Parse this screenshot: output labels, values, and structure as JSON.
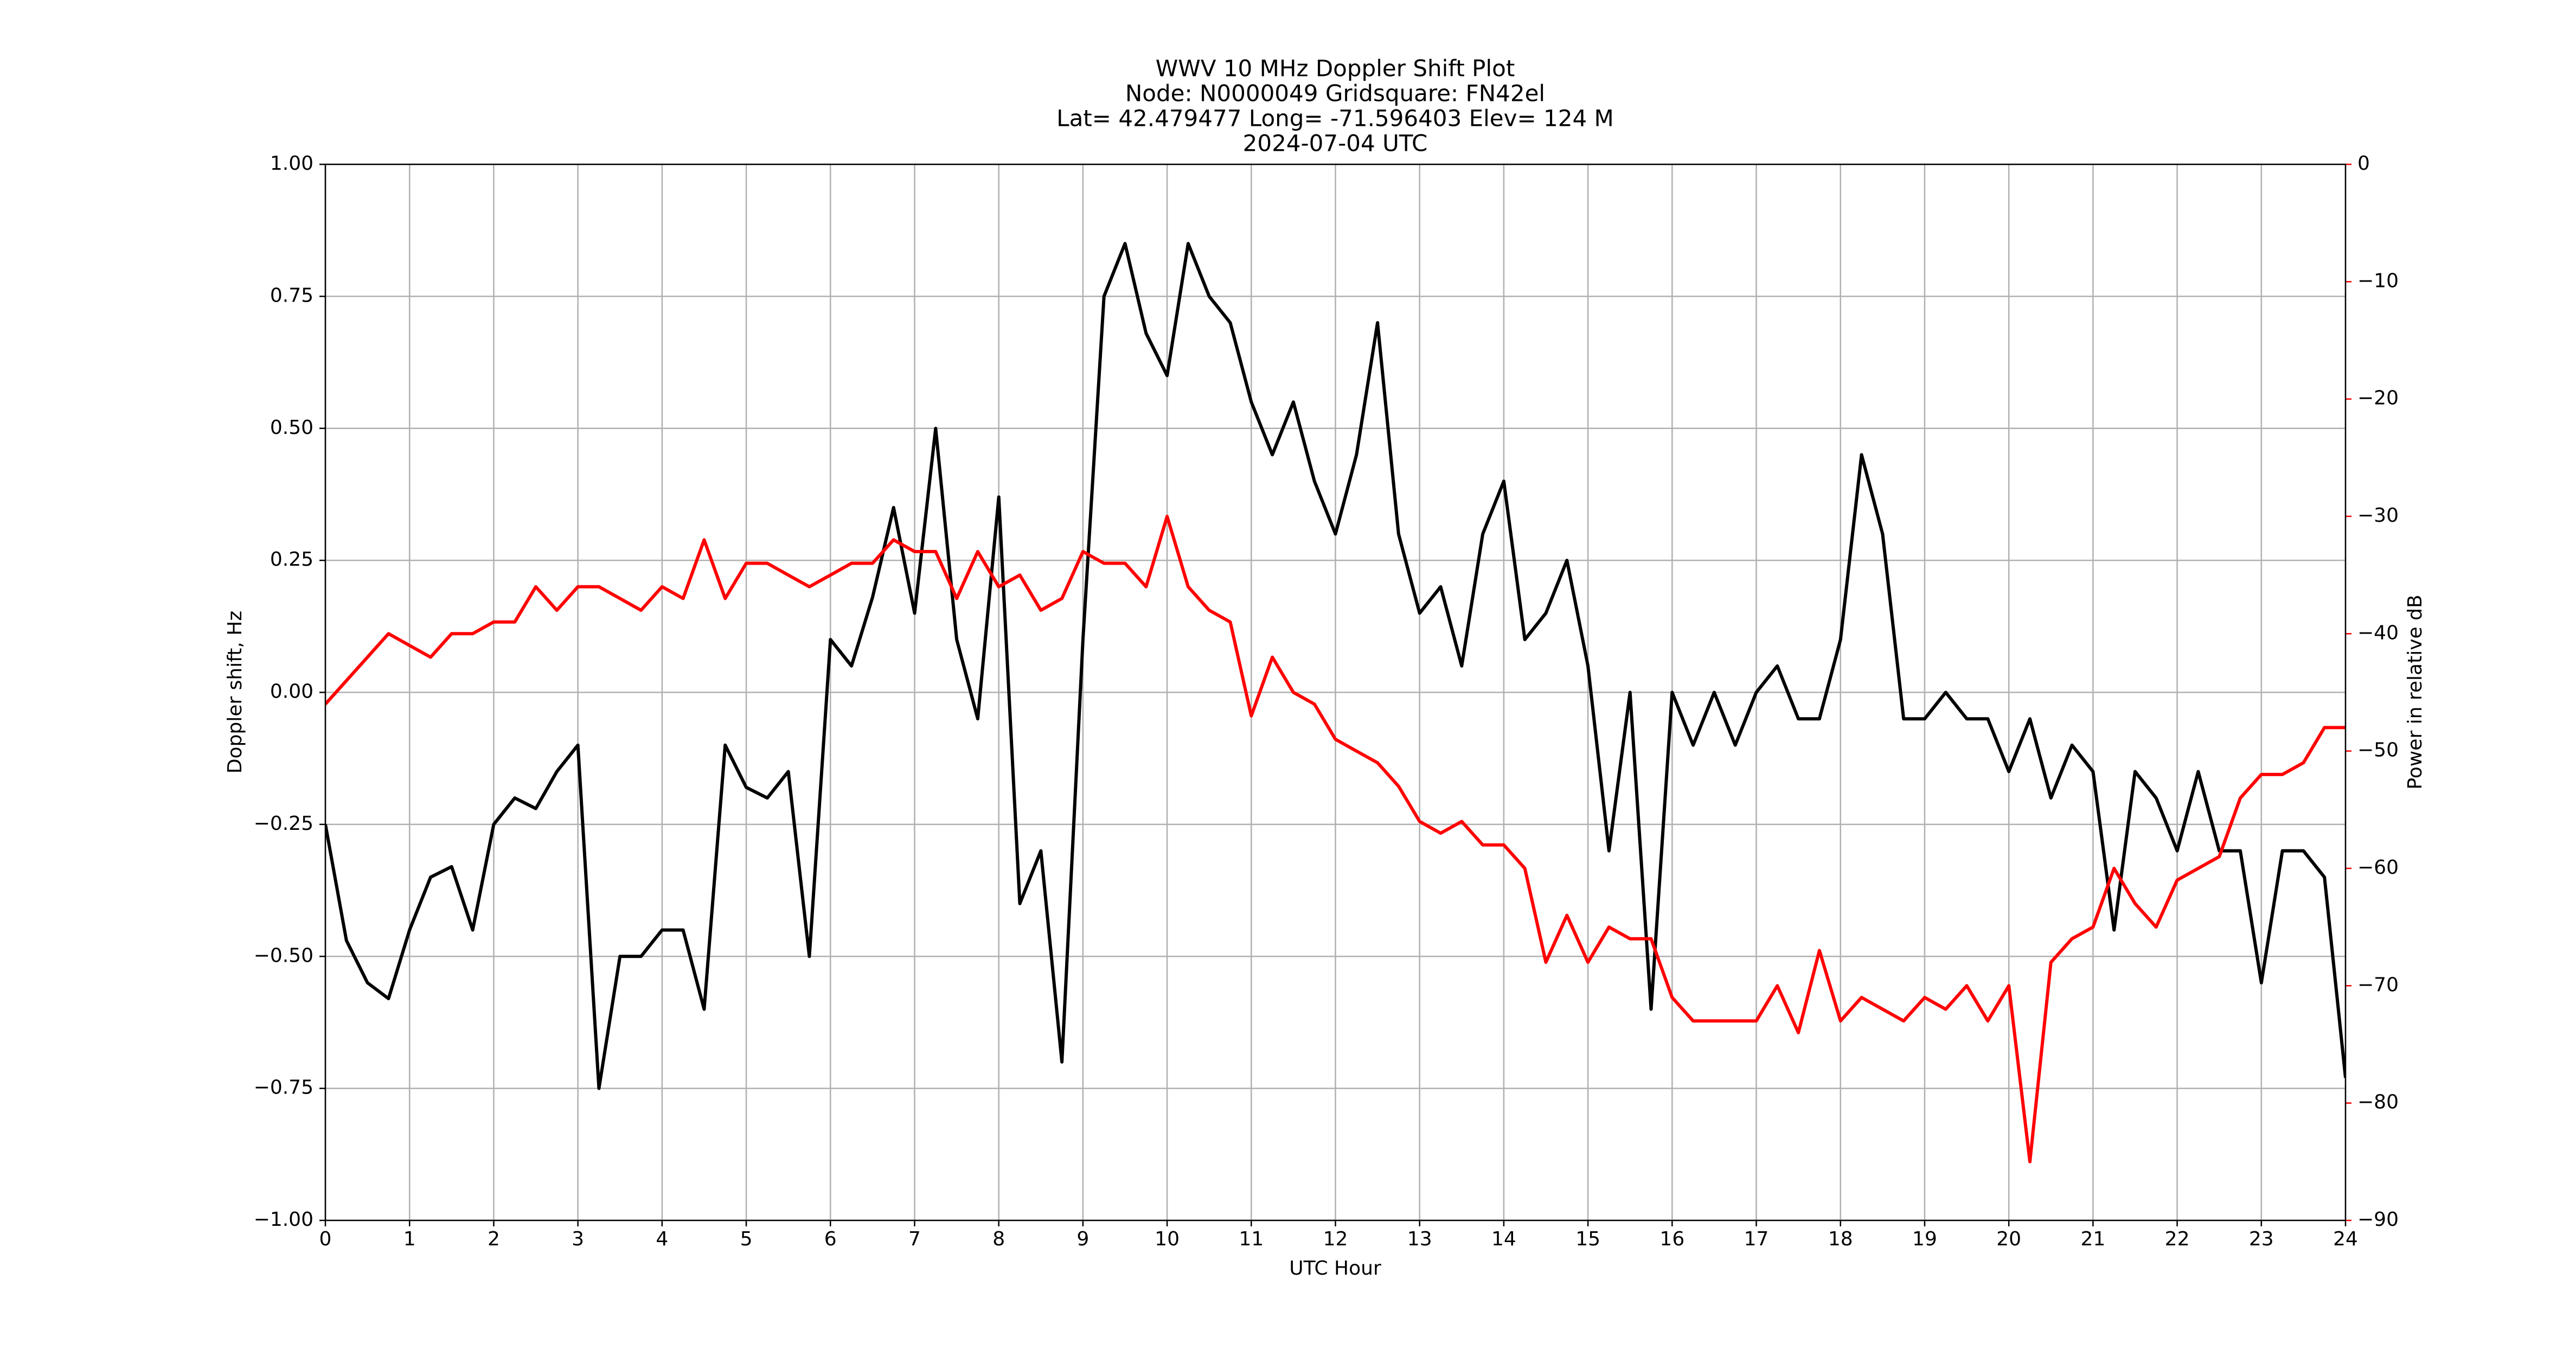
{
  "chart_data": {
    "type": "line",
    "title": [
      "WWV 10 MHz Doppler Shift Plot",
      "Node:  N0000049     Gridsquare:  FN42el",
      "Lat= 42.479477    Long= -71.596403    Elev= 124 M",
      "2024-07-04  UTC"
    ],
    "xlabel": "UTC Hour",
    "ylabel": "Doppler shift, Hz",
    "y2label": "Power in relative dB",
    "y2color": "#ff0000",
    "grid": true,
    "xlim": [
      0,
      24
    ],
    "xticks": [
      0,
      1,
      2,
      3,
      4,
      5,
      6,
      7,
      8,
      9,
      10,
      11,
      12,
      13,
      14,
      15,
      16,
      17,
      18,
      19,
      20,
      21,
      22,
      23,
      24
    ],
    "ylim": [
      -1,
      1
    ],
    "yticks": [
      {
        "value": -1,
        "label": "−1.00"
      },
      {
        "value": -0.75,
        "label": "−0.75"
      },
      {
        "value": -0.5,
        "label": "−0.50"
      },
      {
        "value": -0.25,
        "label": "−0.25"
      },
      {
        "value": 0,
        "label": "0.00"
      },
      {
        "value": 0.25,
        "label": "0.25"
      },
      {
        "value": 0.5,
        "label": "0.50"
      },
      {
        "value": 0.75,
        "label": "0.75"
      },
      {
        "value": 1,
        "label": "1.00"
      }
    ],
    "y2lim": [
      -90,
      0
    ],
    "y2ticks": [
      {
        "value": -90,
        "label": "−90"
      },
      {
        "value": -80,
        "label": "−80"
      },
      {
        "value": -70,
        "label": "−70"
      },
      {
        "value": -60,
        "label": "−60"
      },
      {
        "value": -50,
        "label": "−50"
      },
      {
        "value": -40,
        "label": "−40"
      },
      {
        "value": -30,
        "label": "−30"
      },
      {
        "value": -20,
        "label": "−20"
      },
      {
        "value": -10,
        "label": "−10"
      },
      0
    ],
    "x": [
      0,
      0.25,
      0.5,
      0.75,
      1,
      1.25,
      1.5,
      1.75,
      2,
      2.25,
      2.5,
      2.75,
      3,
      3.25,
      3.5,
      3.75,
      4,
      4.25,
      4.5,
      4.75,
      5,
      5.25,
      5.5,
      5.75,
      6,
      6.25,
      6.5,
      6.75,
      7,
      7.25,
      7.5,
      7.75,
      8,
      8.25,
      8.5,
      8.75,
      9,
      9.25,
      9.5,
      9.75,
      10,
      10.25,
      10.5,
      10.75,
      11,
      11.25,
      11.5,
      11.75,
      12,
      12.25,
      12.5,
      12.75,
      13,
      13.25,
      13.5,
      13.75,
      14,
      14.25,
      14.5,
      14.75,
      15,
      15.25,
      15.5,
      15.75,
      16,
      16.25,
      16.5,
      16.75,
      17,
      17.25,
      17.5,
      17.75,
      18,
      18.25,
      18.5,
      18.75,
      19,
      19.25,
      19.5,
      19.75,
      20,
      20.25,
      20.5,
      20.75,
      21,
      21.25,
      21.5,
      21.75,
      22,
      22.25,
      22.5,
      22.75,
      23,
      23.25,
      23.5,
      23.75,
      24
    ],
    "series": [
      {
        "color": "#000000",
        "values": [
          -0.25,
          -0.47,
          -0.55,
          -0.58,
          -0.45,
          -0.35,
          -0.33,
          -0.45,
          -0.25,
          -0.2,
          -0.22,
          -0.15,
          -0.1,
          -0.75,
          -0.5,
          -0.5,
          -0.45,
          -0.45,
          -0.6,
          -0.1,
          -0.18,
          -0.2,
          -0.15,
          -0.5,
          0.1,
          0.05,
          0.18,
          0.35,
          0.15,
          0.5,
          0.1,
          -0.05,
          0.37,
          -0.4,
          -0.3,
          -0.7,
          0.1,
          0.75,
          0.85,
          0.68,
          0.6,
          0.85,
          0.75,
          0.7,
          0.55,
          0.45,
          0.55,
          0.4,
          0.3,
          0.45,
          0.7,
          0.3,
          0.15,
          0.2,
          0.05,
          0.3,
          0.4,
          0.1,
          0.15,
          0.25,
          0.05,
          -0.3,
          0,
          -0.6,
          0,
          -0.1,
          0,
          -0.1,
          0,
          0.05,
          -0.05,
          -0.05,
          0.1,
          0.45,
          0.3,
          -0.05,
          -0.05,
          0,
          -0.05,
          -0.05,
          -0.15,
          -0.05,
          -0.2,
          -0.1,
          -0.15,
          -0.45,
          -0.15,
          -0.2,
          -0.3,
          -0.15,
          -0.3,
          -0.3,
          -0.55,
          -0.3,
          -0.3,
          -0.35,
          -0.73
        ]
      },
      {
        "color": "#ff0000",
        "axis": "y2",
        "values": [
          -46,
          -44,
          -42,
          -40,
          -41,
          -42,
          -40,
          -40,
          -39,
          -39,
          -36,
          -38,
          -36,
          -36,
          -37,
          -38,
          -36,
          -37,
          -32,
          -37,
          -34,
          -34,
          -35,
          -36,
          -35,
          -34,
          -34,
          -32,
          -33,
          -33,
          -37,
          -33,
          -36,
          -35,
          -38,
          -37,
          -33,
          -34,
          -34,
          -36,
          -30,
          -36,
          -38,
          -39,
          -47,
          -42,
          -45,
          -46,
          -49,
          -50,
          -51,
          -53,
          -56,
          -57,
          -56,
          -58,
          -58,
          -60,
          -68,
          -64,
          -68,
          -65,
          -66,
          -66,
          -71,
          -73,
          -73,
          -73,
          -73,
          -70,
          -74,
          -67,
          -73,
          -71,
          -72,
          -73,
          -71,
          -72,
          -70,
          -73,
          -70,
          -85,
          -68,
          -66,
          -65,
          -60,
          -63,
          -65,
          -61,
          -60,
          -59,
          -54,
          -52,
          -52,
          -51,
          -48,
          -48
        ]
      }
    ]
  }
}
